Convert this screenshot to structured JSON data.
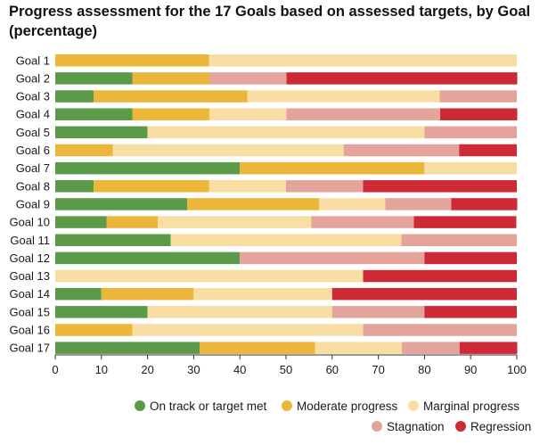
{
  "title_line1": "Progress assessment for the 17 Goals based on assessed targets, by Goal",
  "title_line2": "(percentage)",
  "chart_data": {
    "type": "bar",
    "orientation": "horizontal",
    "stacked": true,
    "title": "Progress assessment for the 17 Goals based on assessed targets, by Goal (percentage)",
    "categories": [
      "Goal 1",
      "Goal 2",
      "Goal 3",
      "Goal 4",
      "Goal 5",
      "Goal 6",
      "Goal 7",
      "Goal 8",
      "Goal 9",
      "Goal 10",
      "Goal 11",
      "Goal 12",
      "Goal 13",
      "Goal 14",
      "Goal 15",
      "Goal 16",
      "Goal 17"
    ],
    "xlim": [
      0,
      100
    ],
    "xticks": [
      0,
      10,
      20,
      30,
      40,
      50,
      60,
      70,
      80,
      90,
      100
    ],
    "legend_position": "bottom",
    "series": [
      {
        "name": "On track or target met",
        "color": "#5b9a48",
        "values": [
          0,
          16.7,
          8.3,
          16.7,
          20,
          0,
          40,
          8.3,
          28.6,
          11.1,
          25,
          40,
          0,
          10,
          20,
          0,
          31.3
        ]
      },
      {
        "name": "Moderate progress",
        "color": "#ebb639",
        "values": [
          33.3,
          16.7,
          33.3,
          16.7,
          0,
          12.5,
          40,
          25,
          28.6,
          11.1,
          0,
          0,
          0,
          20,
          0,
          16.7,
          25
        ]
      },
      {
        "name": "Marginal progress",
        "color": "#f8dea3",
        "values": [
          66.7,
          0,
          41.7,
          16.7,
          60,
          50,
          20,
          16.7,
          14.3,
          33.3,
          50,
          0,
          66.7,
          30,
          40,
          50,
          18.8
        ]
      },
      {
        "name": "Stagnation",
        "color": "#e5a49b",
        "values": [
          0,
          16.7,
          16.7,
          33.3,
          20,
          25,
          0,
          16.7,
          14.3,
          22.2,
          25,
          40,
          0,
          0,
          20,
          33.3,
          12.5
        ]
      },
      {
        "name": "Regression",
        "color": "#cd2a36",
        "values": [
          0,
          50,
          0,
          16.7,
          0,
          12.5,
          0,
          33.3,
          14.3,
          22.2,
          0,
          20,
          33.3,
          40,
          20,
          0,
          12.5
        ]
      }
    ]
  }
}
